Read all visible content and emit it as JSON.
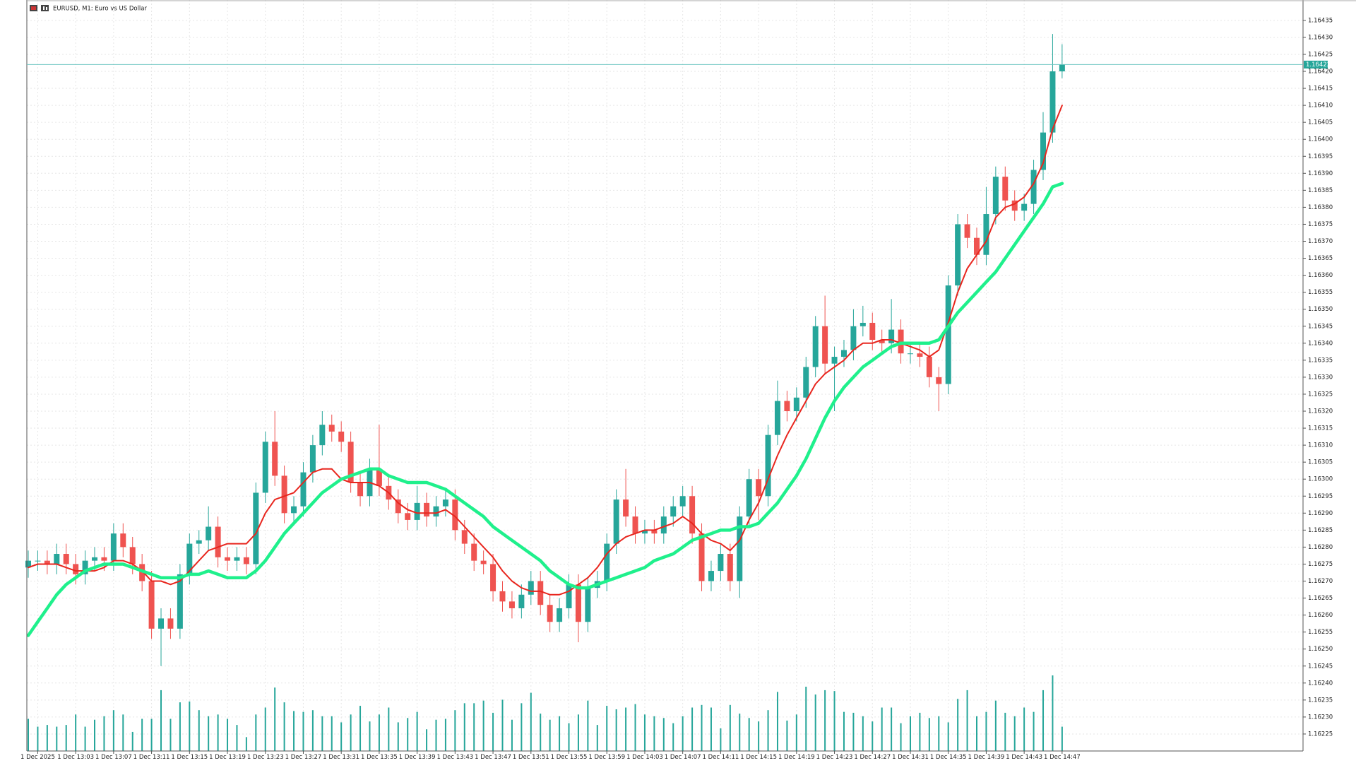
{
  "chart_data": {
    "type": "candlestick",
    "title": "EURUSD, M1:  Euro vs US Dollar",
    "categories": [
      null,
      "1 Dec 2025",
      null,
      null,
      null,
      "1 Dec 13:03",
      null,
      null,
      null,
      "1 Dec 13:07",
      null,
      null,
      null,
      "1 Dec 13:11",
      null,
      null,
      null,
      "1 Dec 13:15",
      null,
      null,
      null,
      "1 Dec 13:19",
      null,
      null,
      null,
      "1 Dec 13:23",
      null,
      null,
      null,
      "1 Dec 13:27",
      null,
      null,
      null,
      "1 Dec 13:31",
      null,
      null,
      null,
      "1 Dec 13:35",
      null,
      null,
      null,
      "1 Dec 13:39",
      null,
      null,
      null,
      "1 Dec 13:43",
      null,
      null,
      null,
      "1 Dec 13:47",
      null,
      null,
      null,
      "1 Dec 13:51",
      null,
      null,
      null,
      "1 Dec 13:55",
      null,
      null,
      null,
      "1 Dec 13:59",
      null,
      null,
      null,
      "1 Dec 14:03",
      null,
      null,
      null,
      "1 Dec 14:07",
      null,
      null,
      null,
      "1 Dec 14:11",
      null,
      null,
      null,
      "1 Dec 14:15",
      null,
      null,
      null,
      "1 Dec 14:19",
      null,
      null,
      null,
      "1 Dec 14:23",
      null,
      null,
      null,
      "1 Dec 14:27",
      null,
      null,
      null,
      "1 Dec 14:31",
      null,
      null,
      null,
      "1 Dec 14:35",
      null,
      null,
      null,
      "1 Dec 14:39",
      null,
      null,
      null,
      "1 Dec 14:43",
      null,
      null,
      null,
      "1 Dec 14:47"
    ],
    "open": [
      1.16274,
      1.16276,
      1.16276,
      1.16275,
      1.16278,
      1.16275,
      1.16272,
      1.16276,
      1.16277,
      1.16276,
      1.16284,
      1.1628,
      1.16275,
      1.1627,
      1.16256,
      1.16259,
      1.16256,
      1.16272,
      1.16281,
      1.16282,
      1.16286,
      1.16277,
      1.16276,
      1.16277,
      1.16275,
      1.16296,
      1.16311,
      1.16301,
      1.1629,
      1.16292,
      1.16302,
      1.1631,
      1.16316,
      1.16314,
      1.16311,
      1.16299,
      1.16295,
      1.16303,
      1.16298,
      1.16294,
      1.1629,
      1.16288,
      1.16293,
      1.16289,
      1.16292,
      1.16294,
      1.16285,
      1.16281,
      1.16276,
      1.16275,
      1.16267,
      1.16264,
      1.16262,
      1.16266,
      1.1627,
      1.16263,
      1.16258,
      1.16262,
      1.16269,
      1.16258,
      1.16268,
      1.1627,
      1.16281,
      1.16294,
      1.16289,
      1.16284,
      1.16285,
      1.16284,
      1.16289,
      1.16292,
      1.16295,
      1.16284,
      1.1627,
      1.16273,
      1.16278,
      1.1627,
      1.16289,
      1.163,
      1.16295,
      1.16313,
      1.16323,
      1.1632,
      1.16324,
      1.16333,
      1.16345,
      1.16334,
      1.16336,
      1.16338,
      1.16345,
      1.16346,
      1.16341,
      1.1634,
      1.16344,
      1.16337,
      1.16337,
      1.16336,
      1.1633,
      1.16328,
      1.16357,
      1.16375,
      1.16371,
      1.16366,
      1.16378,
      1.16389,
      1.16382,
      1.16379,
      1.16381,
      1.16391,
      1.16402,
      1.1642
    ],
    "high": [
      1.16279,
      1.16279,
      1.16279,
      1.16281,
      1.16281,
      1.16278,
      1.16279,
      1.1628,
      1.1628,
      1.16287,
      1.16287,
      1.16283,
      1.16278,
      1.16273,
      1.16262,
      1.16262,
      1.16275,
      1.16284,
      1.16285,
      1.16292,
      1.16289,
      1.1628,
      1.1628,
      1.1628,
      1.16299,
      1.16314,
      1.1632,
      1.16304,
      1.16295,
      1.16305,
      1.16313,
      1.1632,
      1.16319,
      1.16317,
      1.16314,
      1.16302,
      1.16306,
      1.16316,
      1.16301,
      1.16297,
      1.16293,
      1.16298,
      1.16296,
      1.16295,
      1.16297,
      1.16297,
      1.16288,
      1.16284,
      1.16279,
      1.16278,
      1.1627,
      1.16267,
      1.16269,
      1.16273,
      1.16273,
      1.16266,
      1.16265,
      1.16272,
      1.16272,
      1.16271,
      1.16273,
      1.16284,
      1.16297,
      1.16303,
      1.16292,
      1.16288,
      1.16288,
      1.16292,
      1.16295,
      1.16298,
      1.16298,
      1.16287,
      1.16276,
      1.16281,
      1.16281,
      1.16292,
      1.16303,
      1.16303,
      1.16316,
      1.16329,
      1.16326,
      1.16327,
      1.16336,
      1.16348,
      1.16354,
      1.16339,
      1.16341,
      1.1635,
      1.16351,
      1.16349,
      1.16344,
      1.16353,
      1.16347,
      1.1634,
      1.1634,
      1.16339,
      1.16333,
      1.1636,
      1.16378,
      1.16378,
      1.16374,
      1.16386,
      1.16392,
      1.16392,
      1.16385,
      1.16384,
      1.16394,
      1.16408,
      1.16431,
      1.16428
    ],
    "low": [
      1.16271,
      1.16273,
      1.16272,
      1.16272,
      1.16272,
      1.16269,
      1.16269,
      1.16273,
      1.16273,
      1.16273,
      1.16277,
      1.16272,
      1.16267,
      1.16253,
      1.16245,
      1.16253,
      1.16253,
      1.16269,
      1.16278,
      1.16279,
      1.16274,
      1.16273,
      1.16273,
      1.16272,
      1.16272,
      1.16293,
      1.16298,
      1.16287,
      1.16287,
      1.16289,
      1.16299,
      1.16307,
      1.16311,
      1.16308,
      1.16296,
      1.16292,
      1.16292,
      1.16295,
      1.16291,
      1.16287,
      1.16285,
      1.16285,
      1.16286,
      1.16286,
      1.16289,
      1.16282,
      1.16278,
      1.16273,
      1.16272,
      1.16264,
      1.16261,
      1.16259,
      1.16259,
      1.16263,
      1.1626,
      1.16255,
      1.16255,
      1.16259,
      1.16252,
      1.16255,
      1.16265,
      1.16267,
      1.16278,
      1.16286,
      1.16281,
      1.16281,
      1.16281,
      1.16281,
      1.16286,
      1.16289,
      1.16281,
      1.16267,
      1.16267,
      1.1627,
      1.16267,
      1.16265,
      1.16286,
      1.16288,
      1.16292,
      1.1631,
      1.16317,
      1.16317,
      1.16321,
      1.1633,
      1.16331,
      1.1632,
      1.16333,
      1.16335,
      1.16342,
      1.16338,
      1.16337,
      1.16337,
      1.16334,
      1.16334,
      1.16333,
      1.16327,
      1.1632,
      1.16325,
      1.16354,
      1.16368,
      1.16363,
      1.16363,
      1.16375,
      1.16379,
      1.16376,
      1.16376,
      1.16378,
      1.16388,
      1.16399,
      1.16418
    ],
    "close": [
      1.16276,
      1.16276,
      1.16275,
      1.16278,
      1.16275,
      1.16272,
      1.16276,
      1.16277,
      1.16276,
      1.16284,
      1.1628,
      1.16275,
      1.1627,
      1.16256,
      1.16259,
      1.16256,
      1.16272,
      1.16281,
      1.16282,
      1.16286,
      1.16277,
      1.16276,
      1.16277,
      1.16275,
      1.16296,
      1.16311,
      1.16301,
      1.1629,
      1.16292,
      1.16302,
      1.1631,
      1.16316,
      1.16314,
      1.16311,
      1.16299,
      1.16295,
      1.16303,
      1.16298,
      1.16294,
      1.1629,
      1.16288,
      1.16293,
      1.16289,
      1.16292,
      1.16294,
      1.16285,
      1.16281,
      1.16276,
      1.16275,
      1.16267,
      1.16264,
      1.16262,
      1.16266,
      1.1627,
      1.16263,
      1.16258,
      1.16262,
      1.16269,
      1.16258,
      1.16268,
      1.1627,
      1.16281,
      1.16294,
      1.16289,
      1.16284,
      1.16285,
      1.16284,
      1.16289,
      1.16292,
      1.16295,
      1.16284,
      1.1627,
      1.16273,
      1.16278,
      1.1627,
      1.16289,
      1.163,
      1.16295,
      1.16313,
      1.16323,
      1.1632,
      1.16324,
      1.16333,
      1.16345,
      1.16334,
      1.16336,
      1.16338,
      1.16345,
      1.16346,
      1.16341,
      1.1634,
      1.16344,
      1.16337,
      1.16337,
      1.16336,
      1.1633,
      1.16328,
      1.16357,
      1.16375,
      1.16371,
      1.16366,
      1.16378,
      1.16389,
      1.16382,
      1.16379,
      1.16381,
      1.16391,
      1.16402,
      1.1642,
      1.16422
    ],
    "volume": [
      37,
      28,
      30,
      28,
      30,
      42,
      28,
      36,
      40,
      47,
      42,
      22,
      37,
      37,
      70,
      37,
      56,
      57,
      47,
      40,
      42,
      37,
      30,
      16,
      42,
      50,
      73,
      56,
      46,
      45,
      47,
      40,
      40,
      33,
      42,
      52,
      34,
      42,
      50,
      33,
      38,
      45,
      25,
      36,
      37,
      47,
      55,
      55,
      58,
      44,
      59,
      36,
      55,
      67,
      43,
      36,
      40,
      32,
      42,
      58,
      30,
      52,
      48,
      50,
      54,
      42,
      40,
      38,
      32,
      40,
      50,
      53,
      50,
      26,
      53,
      43,
      38,
      34,
      47,
      68,
      35,
      42,
      74,
      65,
      70,
      69,
      45,
      44,
      40,
      34,
      50,
      50,
      32,
      40,
      44,
      38,
      40,
      33,
      60,
      70,
      40,
      45,
      58,
      44,
      40,
      50,
      45,
      70,
      87,
      28
    ],
    "series": [
      {
        "color": "#e8261e",
        "values": [
          1.16274,
          1.16275,
          1.16275,
          1.16275,
          1.16274,
          1.16273,
          1.16273,
          1.16273,
          1.16274,
          1.16276,
          1.16276,
          1.16275,
          1.16273,
          1.1627,
          1.1627,
          1.16269,
          1.1627,
          1.16273,
          1.16276,
          1.16279,
          1.1628,
          1.16281,
          1.16281,
          1.16281,
          1.16284,
          1.1629,
          1.16294,
          1.16295,
          1.16296,
          1.16299,
          1.16302,
          1.16303,
          1.16303,
          1.163,
          1.16299,
          1.16299,
          1.16299,
          1.16298,
          1.16296,
          1.16293,
          1.16291,
          1.1629,
          1.1629,
          1.1629,
          1.16291,
          1.16289,
          1.16286,
          1.16283,
          1.1628,
          1.16277,
          1.16273,
          1.1627,
          1.16268,
          1.16267,
          1.16267,
          1.16266,
          1.16266,
          1.16267,
          1.16269,
          1.16271,
          1.16274,
          1.16278,
          1.16281,
          1.16283,
          1.16284,
          1.16285,
          1.16285,
          1.16286,
          1.16287,
          1.16289,
          1.16287,
          1.16284,
          1.16282,
          1.16281,
          1.16279,
          1.16282,
          1.16288,
          1.16293,
          1.163,
          1.16307,
          1.16313,
          1.16318,
          1.16323,
          1.16328,
          1.16331,
          1.16333,
          1.16335,
          1.16338,
          1.1634,
          1.1634,
          1.16341,
          1.16341,
          1.1634,
          1.16339,
          1.16338,
          1.16336,
          1.16338,
          1.16346,
          1.16355,
          1.16362,
          1.16366,
          1.1637,
          1.16377,
          1.1638,
          1.16381,
          1.16383,
          1.16387,
          1.16393,
          1.16403,
          1.1641
        ]
      },
      {
        "color": "#1ff08c",
        "values": [
          1.16254,
          1.16258,
          1.16262,
          1.16266,
          1.16269,
          1.16271,
          1.16273,
          1.16274,
          1.16275,
          1.16275,
          1.16275,
          1.16274,
          1.16273,
          1.16272,
          1.16271,
          1.16271,
          1.16271,
          1.16272,
          1.16272,
          1.16273,
          1.16272,
          1.16271,
          1.16271,
          1.16271,
          1.16273,
          1.16276,
          1.1628,
          1.16284,
          1.16287,
          1.1629,
          1.16293,
          1.16296,
          1.16298,
          1.163,
          1.16301,
          1.16302,
          1.16303,
          1.16303,
          1.16301,
          1.163,
          1.16299,
          1.16299,
          1.16299,
          1.16298,
          1.16297,
          1.16295,
          1.16293,
          1.16291,
          1.16289,
          1.16286,
          1.16284,
          1.16282,
          1.1628,
          1.16278,
          1.16276,
          1.16273,
          1.16271,
          1.16269,
          1.16268,
          1.16268,
          1.16269,
          1.1627,
          1.16271,
          1.16272,
          1.16273,
          1.16274,
          1.16276,
          1.16277,
          1.16278,
          1.1628,
          1.16282,
          1.16283,
          1.16284,
          1.16285,
          1.16285,
          1.16286,
          1.16286,
          1.16287,
          1.1629,
          1.16293,
          1.16297,
          1.16301,
          1.16306,
          1.16312,
          1.16318,
          1.16323,
          1.16327,
          1.1633,
          1.16333,
          1.16335,
          1.16337,
          1.16339,
          1.1634,
          1.1634,
          1.1634,
          1.1634,
          1.16341,
          1.16345,
          1.16349,
          1.16352,
          1.16355,
          1.16358,
          1.16361,
          1.16365,
          1.16369,
          1.16373,
          1.16377,
          1.16381,
          1.16386,
          1.16387
        ]
      }
    ],
    "up_color": "#26a69a",
    "down_color": "#ef5350",
    "current_price": 1.16422,
    "current_price_label": "1.16422",
    "ylim": [
      1.1622,
      1.16441
    ],
    "yticks": [
      1.16225,
      {
        "value": 1.1623,
        "label": "1.16230"
      },
      1.16235,
      {
        "value": 1.1624,
        "label": "1.16240"
      },
      1.16245,
      {
        "value": 1.1625,
        "label": "1.16250"
      },
      1.16255,
      {
        "value": 1.1626,
        "label": "1.16260"
      },
      1.16265,
      {
        "value": 1.1627,
        "label": "1.16270"
      },
      1.16275,
      {
        "value": 1.1628,
        "label": "1.16280"
      },
      1.16285,
      {
        "value": 1.1629,
        "label": "1.16290"
      },
      1.16295,
      {
        "value": 1.163,
        "label": "1.16300"
      },
      1.16305,
      {
        "value": 1.1631,
        "label": "1.16310"
      },
      1.16315,
      {
        "value": 1.1632,
        "label": "1.16320"
      },
      1.16325,
      {
        "value": 1.1633,
        "label": "1.16330"
      },
      1.16335,
      {
        "value": 1.1634,
        "label": "1.16340"
      },
      1.16345,
      {
        "value": 1.1635,
        "label": "1.16350"
      },
      1.16355,
      {
        "value": 1.1636,
        "label": "1.16360"
      },
      1.16365,
      {
        "value": 1.1637,
        "label": "1.16370"
      },
      1.16375,
      {
        "value": 1.1638,
        "label": "1.16380"
      },
      1.16385,
      {
        "value": 1.1639,
        "label": "1.16390"
      },
      1.16395,
      {
        "value": 1.164,
        "label": "1.16400"
      },
      1.16405,
      {
        "value": 1.1641,
        "label": "1.16410"
      },
      1.16415,
      {
        "value": 1.1642,
        "label": "1.16420"
      },
      1.16425,
      {
        "value": 1.1643,
        "label": "1.16430"
      },
      1.16435
    ],
    "grid": true
  }
}
